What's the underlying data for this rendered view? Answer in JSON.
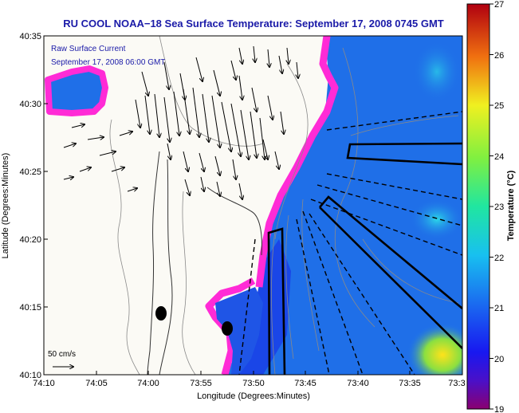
{
  "title": "RU COOL  NOAA−18  Sea Surface Temperature:  September 17, 2008 0745 GMT",
  "legend": {
    "line1": "Raw Surface Current",
    "line2": "September 17, 2008 06:00 GMT"
  },
  "scale_label": "50 cm/s",
  "axes": {
    "xlabel": "Longitude (Degrees:Minutes)",
    "ylabel": "Latitude (Degrees:Minutes)",
    "x_ticks": [
      "74:10",
      "74:05",
      "74:00",
      "73:55",
      "73:50",
      "73:45",
      "73:40",
      "73:35",
      "73:3"
    ],
    "y_ticks": [
      "40:35",
      "40:30",
      "40:25",
      "40:20",
      "40:15",
      "40:10"
    ]
  },
  "colorbar": {
    "label": "Temperature (°C)",
    "ticks": [
      "27",
      "26",
      "25",
      "24",
      "23",
      "22",
      "21",
      "20",
      "19"
    ],
    "min": 19,
    "max": 27
  },
  "colors": {
    "title": "#1a1aa8",
    "land": "#fbfaf5",
    "cloud_mask": "#ff2bd6",
    "sst_mid": "#1f6fe8"
  }
}
